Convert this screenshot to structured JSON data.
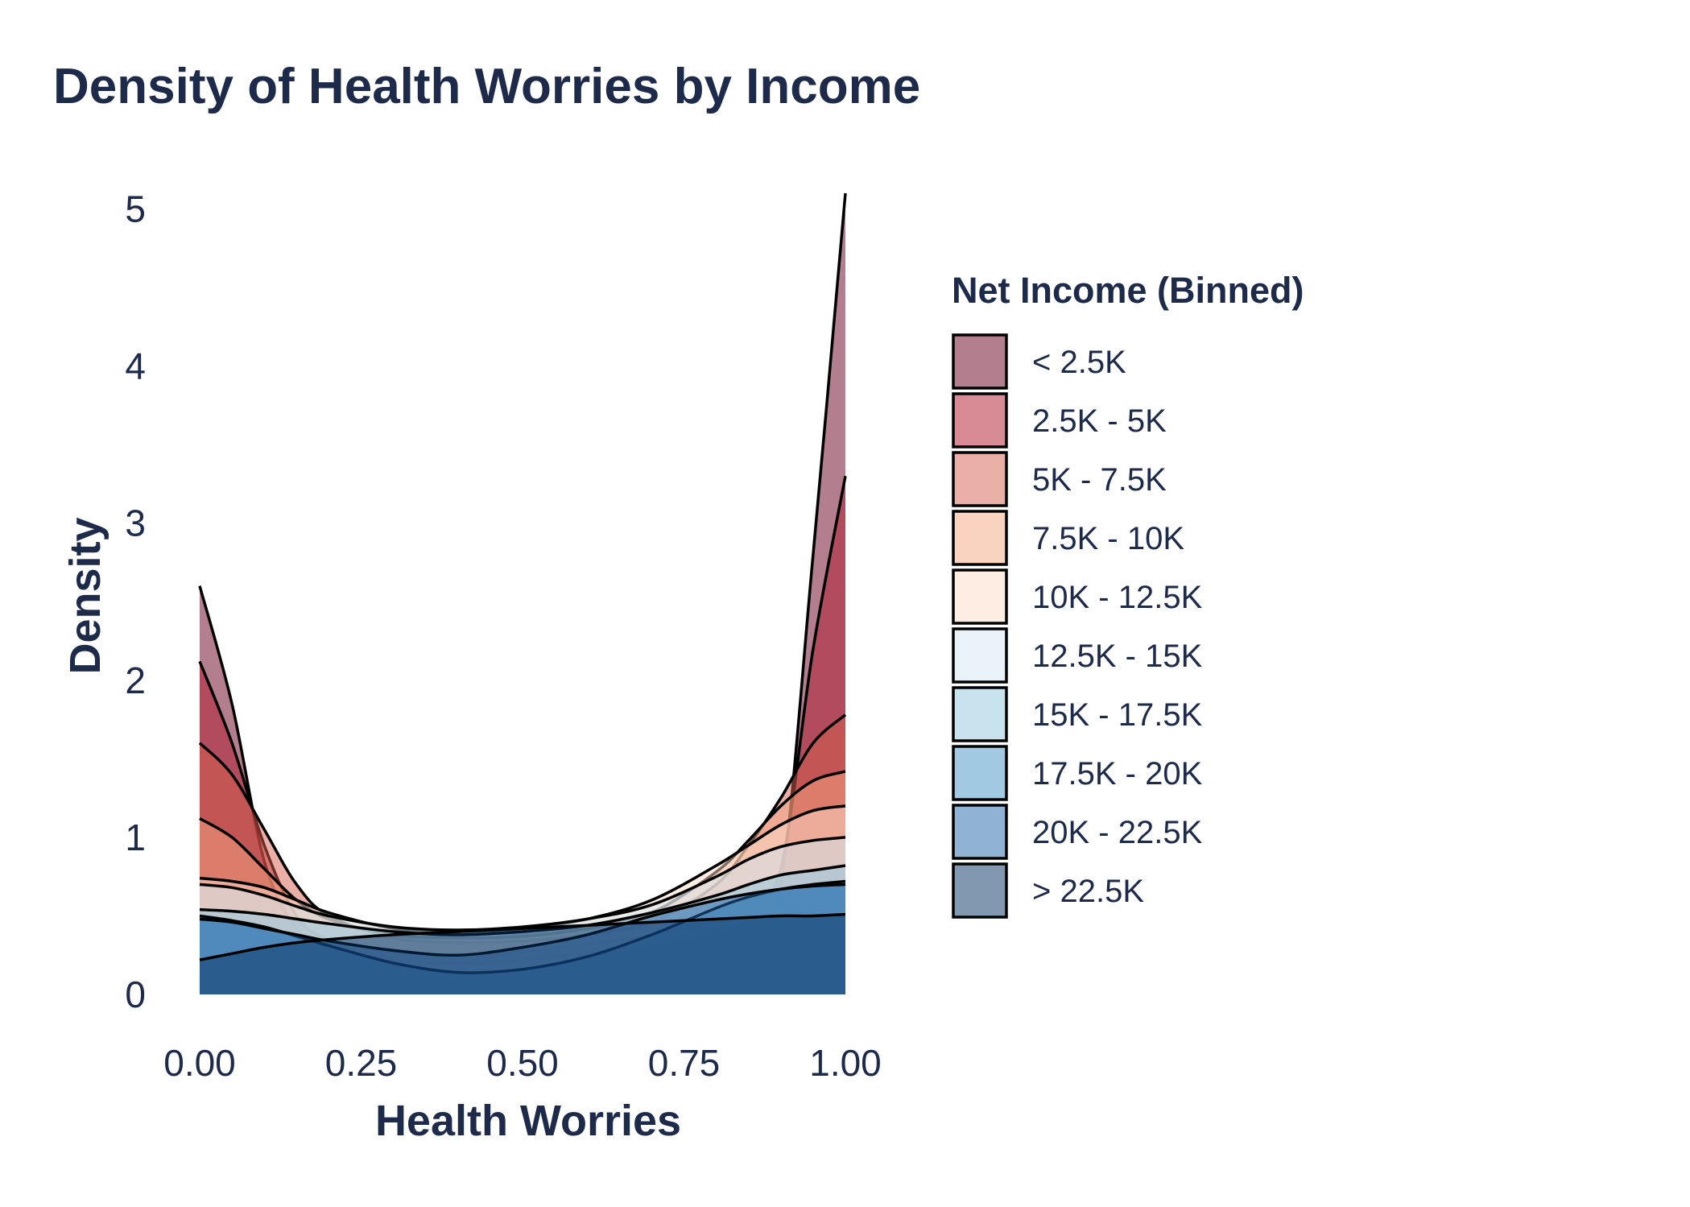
{
  "chart_data": {
    "type": "area",
    "subtype": "overlapping density",
    "title": "Density of Health Worries by Income",
    "xlabel": "Health Worries",
    "ylabel": "Density",
    "xlim": [
      0,
      1
    ],
    "ylim": [
      0,
      5.1
    ],
    "x_ticks": [
      "0.00",
      "0.25",
      "0.50",
      "0.75",
      "1.00"
    ],
    "y_ticks": [
      "0",
      "1",
      "2",
      "3",
      "4",
      "5"
    ],
    "grid": false,
    "legend": {
      "title": "Net Income (Binned)",
      "position": "right"
    },
    "x": [
      0.0,
      0.05,
      0.1,
      0.15,
      0.2,
      0.3,
      0.4,
      0.5,
      0.6,
      0.7,
      0.8,
      0.85,
      0.9,
      0.95,
      1.0
    ],
    "series": [
      {
        "name": "< 2.5K",
        "color": "#67001f",
        "opacity": 0.5,
        "values": [
          2.6,
          1.85,
          0.85,
          0.42,
          0.3,
          0.22,
          0.2,
          0.22,
          0.26,
          0.3,
          0.38,
          0.48,
          0.7,
          2.8,
          5.1
        ]
      },
      {
        "name": "2.5K - 5K",
        "color": "#b2182b",
        "opacity": 0.5,
        "values": [
          2.12,
          1.6,
          0.95,
          0.5,
          0.35,
          0.27,
          0.25,
          0.27,
          0.32,
          0.38,
          0.48,
          0.6,
          0.8,
          2.2,
          3.3
        ]
      },
      {
        "name": "5K - 7.5K",
        "color": "#d6604d",
        "opacity": 0.5,
        "values": [
          1.6,
          1.4,
          1.05,
          0.7,
          0.5,
          0.36,
          0.33,
          0.34,
          0.38,
          0.46,
          0.7,
          0.95,
          1.25,
          1.6,
          1.78
        ]
      },
      {
        "name": "7.5K - 10K",
        "color": "#f4a582",
        "opacity": 0.5,
        "values": [
          1.12,
          1.0,
          0.8,
          0.6,
          0.48,
          0.38,
          0.36,
          0.37,
          0.42,
          0.52,
          0.78,
          0.98,
          1.2,
          1.36,
          1.42
        ]
      },
      {
        "name": "10K - 12.5K",
        "color": "#fddbc7",
        "opacity": 0.5,
        "values": [
          0.74,
          0.72,
          0.68,
          0.6,
          0.52,
          0.42,
          0.4,
          0.42,
          0.48,
          0.6,
          0.82,
          0.95,
          1.08,
          1.17,
          1.2
        ]
      },
      {
        "name": "12.5K - 15K",
        "color": "#d1e5f0",
        "opacity": 0.5,
        "values": [
          0.7,
          0.68,
          0.63,
          0.56,
          0.5,
          0.43,
          0.41,
          0.43,
          0.48,
          0.57,
          0.75,
          0.86,
          0.94,
          0.98,
          1.0
        ]
      },
      {
        "name": "15K - 17.5K",
        "color": "#92c5de",
        "opacity": 0.5,
        "values": [
          0.54,
          0.53,
          0.51,
          0.48,
          0.45,
          0.4,
          0.38,
          0.4,
          0.44,
          0.52,
          0.63,
          0.7,
          0.76,
          0.79,
          0.82
        ]
      },
      {
        "name": "17.5K - 20K",
        "color": "#4393c3",
        "opacity": 0.5,
        "values": [
          0.5,
          0.47,
          0.43,
          0.37,
          0.31,
          0.2,
          0.14,
          0.16,
          0.24,
          0.38,
          0.55,
          0.62,
          0.67,
          0.7,
          0.72
        ]
      },
      {
        "name": "20K - 22.5K",
        "color": "#2166ac",
        "opacity": 0.5,
        "values": [
          0.48,
          0.46,
          0.42,
          0.38,
          0.34,
          0.28,
          0.25,
          0.3,
          0.38,
          0.5,
          0.6,
          0.64,
          0.67,
          0.69,
          0.7
        ]
      },
      {
        "name": "> 22.5K",
        "color": "#053061",
        "opacity": 0.5,
        "values": [
          0.22,
          0.26,
          0.3,
          0.33,
          0.35,
          0.38,
          0.4,
          0.42,
          0.44,
          0.46,
          0.48,
          0.49,
          0.5,
          0.5,
          0.51
        ]
      }
    ]
  }
}
